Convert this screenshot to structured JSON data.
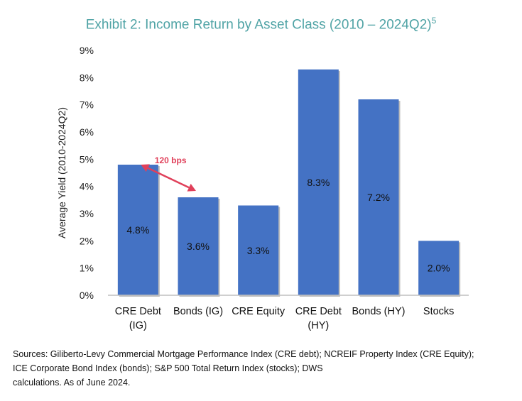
{
  "title": "Exhibit 2: Income Return by Asset Class (2010 – 2024Q2)",
  "title_sup": "5",
  "chart_data": {
    "type": "bar",
    "title": "Exhibit 2: Income Return by Asset Class (2010 – 2024Q2)",
    "ylabel": "Average Yield (2010-2024Q2)",
    "xlabel": "",
    "ylim": [
      0,
      9
    ],
    "yticks": [
      0,
      1,
      2,
      3,
      4,
      5,
      6,
      7,
      8,
      9
    ],
    "ytick_labels": [
      "0%",
      "1%",
      "2%",
      "3%",
      "4%",
      "5%",
      "6%",
      "7%",
      "8%",
      "9%"
    ],
    "categories": [
      [
        "CRE Debt",
        "(IG)"
      ],
      [
        "Bonds (IG)"
      ],
      [
        "CRE Equity"
      ],
      [
        "CRE Debt",
        "(HY)"
      ],
      [
        "Bonds (HY)"
      ],
      [
        "Stocks"
      ]
    ],
    "values": [
      4.8,
      3.6,
      3.3,
      8.3,
      7.2,
      2.0
    ],
    "data_labels": [
      "4.8%",
      "3.6%",
      "3.3%",
      "8.3%",
      "7.2%",
      "2.0%"
    ],
    "bar_color": "#4472c4",
    "grid": false,
    "annotation": {
      "text": "120 bps",
      "color": "#e0405a",
      "from_category": 0,
      "to_category": 1
    }
  },
  "sources": [
    "Sources: Giliberto-Levy Commercial Mortgage Performance Index (CRE debt); NCREIF Property Index (CRE Equity);",
    "ICE Corporate Bond Index (bonds); S&P 500 Total Return Index (stocks); DWS",
    " calculations. As of June 2024."
  ]
}
